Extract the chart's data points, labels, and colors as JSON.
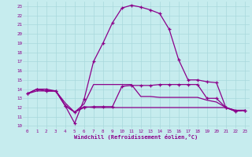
{
  "xlabel": "Windchill (Refroidissement éolien,°C)",
  "x_ticks": [
    0,
    1,
    2,
    3,
    4,
    5,
    6,
    7,
    8,
    9,
    10,
    11,
    12,
    13,
    14,
    15,
    16,
    17,
    18,
    19,
    20,
    21,
    22,
    23
  ],
  "y_ticks": [
    10,
    11,
    12,
    13,
    14,
    15,
    16,
    17,
    18,
    19,
    20,
    21,
    22,
    23
  ],
  "ylim": [
    9.7,
    23.5
  ],
  "xlim": [
    -0.5,
    23.5
  ],
  "bg_color": "#c6ecee",
  "grid_color": "#a8d8dc",
  "line_color": "#8b008b",
  "line1_x": [
    0,
    1,
    2,
    3,
    4,
    5,
    6,
    7,
    8,
    9,
    10,
    11,
    12,
    13,
    14,
    15,
    16,
    17,
    18,
    19,
    20,
    21,
    22,
    23
  ],
  "line1_y": [
    13.5,
    14.0,
    14.0,
    13.8,
    12.2,
    10.3,
    12.9,
    17.0,
    19.0,
    21.2,
    22.8,
    23.1,
    22.9,
    22.6,
    22.2,
    20.5,
    17.2,
    15.0,
    15.0,
    14.8,
    14.7,
    12.0,
    11.6,
    11.7
  ],
  "line2_x": [
    0,
    1,
    2,
    3,
    4,
    5,
    6,
    7,
    8,
    9,
    10,
    11,
    12,
    13,
    14,
    15,
    16,
    17,
    18,
    19,
    20,
    21,
    22,
    23
  ],
  "line2_y": [
    13.5,
    14.0,
    13.8,
    13.8,
    12.2,
    11.5,
    12.0,
    12.1,
    12.1,
    12.1,
    14.3,
    14.4,
    14.4,
    14.4,
    14.5,
    14.5,
    14.5,
    14.5,
    14.5,
    13.0,
    13.0,
    12.0,
    11.7,
    11.7
  ],
  "line3_x": [
    0,
    1,
    2,
    3,
    4,
    5,
    6,
    7,
    8,
    9,
    10,
    11,
    12,
    13,
    14,
    15,
    16,
    17,
    18,
    19,
    20,
    21,
    22,
    23
  ],
  "line3_y": [
    13.5,
    14.0,
    13.8,
    13.8,
    12.2,
    11.5,
    12.1,
    12.0,
    12.0,
    12.0,
    12.0,
    12.0,
    12.0,
    12.0,
    12.0,
    12.0,
    12.0,
    12.0,
    12.0,
    12.0,
    12.0,
    12.0,
    11.7,
    11.7
  ],
  "line4_x": [
    0,
    1,
    2,
    3,
    4,
    5,
    6,
    7,
    8,
    9,
    10,
    11,
    12,
    13,
    14,
    15,
    16,
    17,
    18,
    19,
    20,
    21,
    22,
    23
  ],
  "line4_y": [
    13.5,
    13.8,
    13.8,
    13.8,
    12.5,
    11.5,
    12.4,
    14.5,
    14.5,
    14.5,
    14.5,
    14.5,
    13.2,
    13.2,
    13.1,
    13.1,
    13.1,
    13.1,
    13.1,
    12.8,
    12.6,
    12.0,
    11.6,
    11.7
  ]
}
